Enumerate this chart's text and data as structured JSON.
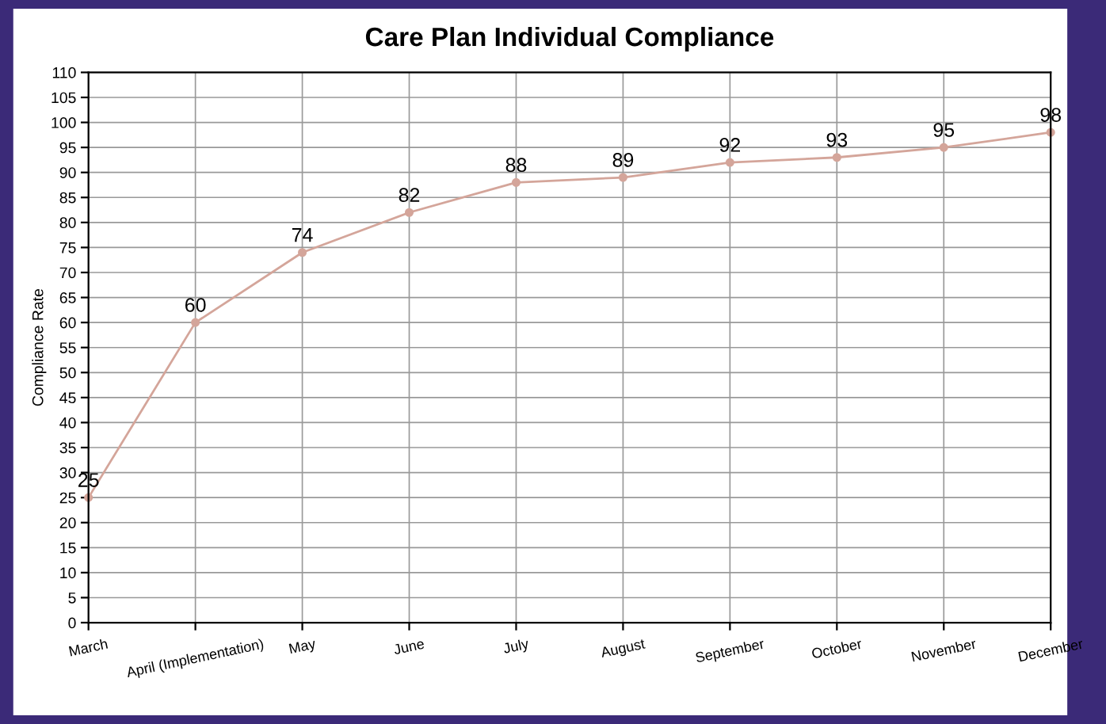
{
  "chart_data": {
    "type": "line",
    "title": "Care Plan Individual Compliance",
    "ylabel": "Compliance Rate",
    "categories": [
      "March",
      "April (Implementation)",
      "May",
      "June",
      "July",
      "August",
      "September",
      "October",
      "November",
      "December"
    ],
    "series": [
      {
        "color": "#d4a59a",
        "values": [
          25,
          60,
          74,
          82,
          88,
          89,
          92,
          93,
          95,
          98
        ]
      }
    ],
    "ylim": [
      0,
      110
    ],
    "yticks": [
      0,
      5,
      10,
      15,
      20,
      25,
      30,
      35,
      40,
      45,
      50,
      55,
      60,
      65,
      70,
      75,
      80,
      85,
      90,
      95,
      100,
      105,
      110
    ],
    "grid": true,
    "marker": "circle",
    "line_style": "solid",
    "data_labels": true,
    "legend": false
  }
}
